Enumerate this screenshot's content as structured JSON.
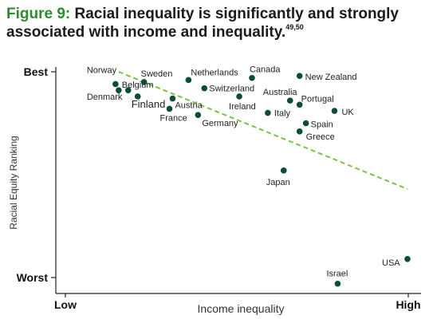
{
  "header": {
    "figure_label": "Figure 9:",
    "title_text": "Racial inequality is significantly and strongly associated with income and inequality.",
    "superscript": "49,50"
  },
  "colors": {
    "figure_label": "#2e8b2e",
    "point": "#0b4d35",
    "trend": "#7cc242",
    "axis": "#222222"
  },
  "chart_data": {
    "type": "scatter",
    "xlabel": "Income inequality",
    "ylabel": "Racial Equity Ranking",
    "x_tick_labels": [
      {
        "x": 0,
        "label": "Low"
      },
      {
        "x": 100,
        "label": "High"
      }
    ],
    "y_tick_labels": [
      {
        "y": 100,
        "label": "Best"
      },
      {
        "y": 0,
        "label": "Worst"
      }
    ],
    "xlim": [
      0,
      100
    ],
    "ylim": [
      0,
      100
    ],
    "grid": false,
    "points": [
      {
        "label": "Norway",
        "x": 8,
        "y": 94
      },
      {
        "label": "Denmark",
        "x": 9,
        "y": 91
      },
      {
        "label": "Sweden",
        "x": 17,
        "y": 95
      },
      {
        "label": "Belgium",
        "x": 12,
        "y": 91
      },
      {
        "label": "Finland",
        "x": 15,
        "y": 88
      },
      {
        "label": "Austria",
        "x": 26,
        "y": 87
      },
      {
        "label": "France",
        "x": 25,
        "y": 82
      },
      {
        "label": "Netherlands",
        "x": 31,
        "y": 96
      },
      {
        "label": "Switzerland",
        "x": 36,
        "y": 92
      },
      {
        "label": "Germany",
        "x": 34,
        "y": 79
      },
      {
        "label": "Ireland",
        "x": 47,
        "y": 88
      },
      {
        "label": "Canada",
        "x": 51,
        "y": 97
      },
      {
        "label": "Italy",
        "x": 56,
        "y": 80
      },
      {
        "label": "New Zealand",
        "x": 66,
        "y": 98
      },
      {
        "label": "Australia",
        "x": 63,
        "y": 86
      },
      {
        "label": "Portugal",
        "x": 66,
        "y": 84
      },
      {
        "label": "UK",
        "x": 77,
        "y": 81
      },
      {
        "label": "Spain",
        "x": 68,
        "y": 75
      },
      {
        "label": "Greece",
        "x": 66,
        "y": 71
      },
      {
        "label": "Japan",
        "x": 61,
        "y": 52
      },
      {
        "label": "Israel",
        "x": 78,
        "y": -3
      },
      {
        "label": "USA",
        "x": 100,
        "y": 9
      }
    ],
    "trendline": {
      "x": [
        9,
        100
      ],
      "y": [
        100,
        43
      ]
    }
  }
}
